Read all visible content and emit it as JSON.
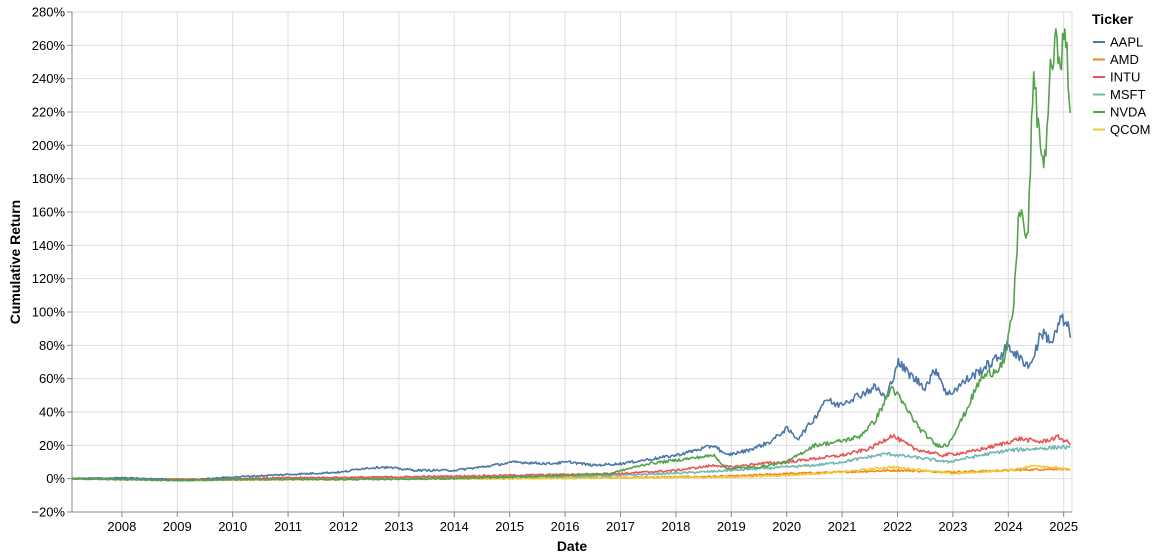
{
  "chart_data": {
    "type": "line",
    "title": "",
    "xlabel": "Date",
    "ylabel": "Cumulative Return",
    "x_range": [
      2007.1,
      2025.15
    ],
    "ylim": [
      -20,
      280
    ],
    "y_ticks": [
      -20,
      0,
      20,
      40,
      60,
      80,
      100,
      120,
      140,
      160,
      180,
      200,
      220,
      240,
      260,
      280
    ],
    "y_tick_labels": [
      "−20%",
      "0%",
      "20%",
      "40%",
      "60%",
      "80%",
      "100%",
      "120%",
      "140%",
      "160%",
      "180%",
      "200%",
      "220%",
      "240%",
      "260%",
      "280%"
    ],
    "x_ticks": [
      2008,
      2009,
      2010,
      2011,
      2012,
      2013,
      2014,
      2015,
      2016,
      2017,
      2018,
      2019,
      2020,
      2021,
      2022,
      2023,
      2024,
      2025
    ],
    "x_tick_labels": [
      "2008",
      "2009",
      "2010",
      "2011",
      "2012",
      "2013",
      "2014",
      "2015",
      "2016",
      "2017",
      "2018",
      "2019",
      "2020",
      "2021",
      "2022",
      "2023",
      "2024",
      "2025"
    ],
    "grid": true,
    "legend": {
      "title": "Ticker",
      "placement": "top-right"
    },
    "series": [
      {
        "name": "AAPL",
        "color": "#4c78a8",
        "x": [
          2007.1,
          2008.0,
          2008.8,
          2009.2,
          2010.0,
          2011.0,
          2012.0,
          2012.3,
          2012.7,
          2013.3,
          2014.0,
          2014.5,
          2015.1,
          2015.7,
          2016.1,
          2016.5,
          2017.0,
          2017.6,
          2018.0,
          2018.7,
          2018.9,
          2019.3,
          2019.7,
          2020.0,
          2020.2,
          2020.5,
          2020.7,
          2020.9,
          2021.3,
          2021.6,
          2021.8,
          2022.0,
          2022.3,
          2022.5,
          2022.7,
          2022.9,
          2023.2,
          2023.5,
          2023.8,
          2024.0,
          2024.2,
          2024.4,
          2024.6,
          2024.8,
          2024.95,
          2025.05,
          2025.12
        ],
        "y": [
          0,
          0.5,
          -0.5,
          -1,
          1,
          2.5,
          4,
          6,
          7,
          5,
          5,
          7,
          10,
          9,
          10,
          8,
          9,
          12,
          14,
          20,
          14,
          17,
          22,
          30,
          24,
          36,
          48,
          44,
          50,
          55,
          48,
          70,
          60,
          55,
          66,
          50,
          58,
          65,
          72,
          80,
          72,
          68,
          88,
          82,
          96,
          92,
          88
        ]
      },
      {
        "name": "AMD",
        "color": "#f58518",
        "x": [
          2007.1,
          2010.0,
          2013.0,
          2016.0,
          2018.0,
          2019.0,
          2020.0,
          2021.0,
          2022.0,
          2023.0,
          2024.0,
          2025.0,
          2025.12
        ],
        "y": [
          0,
          -0.5,
          0,
          0.5,
          1,
          1.5,
          3,
          4,
          5,
          4,
          5,
          6,
          5
        ]
      },
      {
        "name": "INTU",
        "color": "#e45756",
        "x": [
          2007.1,
          2009.0,
          2011.0,
          2013.0,
          2015.0,
          2017.0,
          2018.0,
          2018.7,
          2019.0,
          2019.5,
          2020.0,
          2020.5,
          2021.0,
          2021.5,
          2021.9,
          2022.3,
          2022.8,
          2023.3,
          2023.8,
          2024.2,
          2024.6,
          2024.9,
          2025.12
        ],
        "y": [
          0,
          -0.5,
          0.5,
          1,
          2,
          3,
          5,
          8,
          7,
          9,
          10,
          12,
          14,
          18,
          26,
          18,
          14,
          16,
          20,
          24,
          22,
          25,
          21
        ]
      },
      {
        "name": "MSFT",
        "color": "#72b7b2",
        "x": [
          2007.1,
          2009.0,
          2011.0,
          2013.0,
          2015.0,
          2017.0,
          2018.5,
          2019.0,
          2020.0,
          2020.5,
          2021.0,
          2021.8,
          2022.5,
          2022.9,
          2023.5,
          2024.0,
          2024.5,
          2025.0,
          2025.12
        ],
        "y": [
          0,
          -1,
          0,
          0.5,
          1,
          2,
          4,
          5,
          7,
          8,
          10,
          15,
          12,
          10,
          14,
          17,
          18,
          19,
          18
        ]
      },
      {
        "name": "NVDA",
        "color": "#54a24b",
        "x": [
          2007.1,
          2008.0,
          2009.0,
          2010.0,
          2012.0,
          2014.0,
          2016.0,
          2016.8,
          2017.5,
          2018.7,
          2018.9,
          2019.5,
          2020.0,
          2020.5,
          2020.9,
          2021.3,
          2021.6,
          2021.9,
          2022.1,
          2022.4,
          2022.7,
          2022.9,
          2023.2,
          2023.5,
          2023.8,
          2023.95,
          2024.1,
          2024.2,
          2024.35,
          2024.45,
          2024.55,
          2024.65,
          2024.75,
          2024.85,
          2024.95,
          2025.05,
          2025.12
        ],
        "y": [
          0,
          -0.5,
          -1,
          -0.5,
          -0.5,
          0,
          2,
          3,
          9,
          14,
          6,
          7,
          10,
          20,
          22,
          25,
          35,
          55,
          45,
          30,
          20,
          20,
          38,
          60,
          66,
          72,
          105,
          165,
          140,
          240,
          210,
          185,
          240,
          260,
          255,
          265,
          215
        ]
      },
      {
        "name": "QCOM",
        "color": "#eeca3b",
        "x": [
          2007.1,
          2009.0,
          2011.0,
          2013.0,
          2015.0,
          2017.0,
          2019.0,
          2020.0,
          2021.0,
          2021.9,
          2022.5,
          2023.0,
          2023.5,
          2024.0,
          2024.5,
          2025.0,
          2025.12
        ],
        "y": [
          0,
          -1,
          -0.5,
          0,
          0,
          0.5,
          1,
          2,
          4,
          7,
          5,
          3,
          4,
          5,
          8,
          6,
          5
        ]
      }
    ]
  }
}
